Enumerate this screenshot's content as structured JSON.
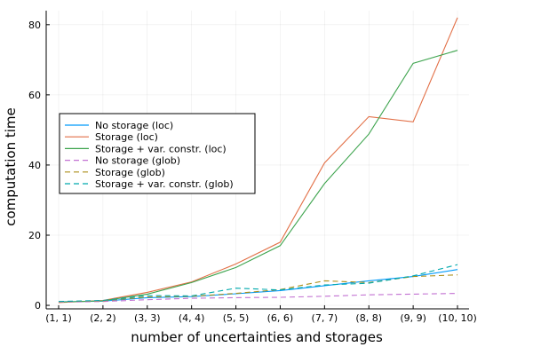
{
  "chart_data": {
    "type": "line",
    "title": "",
    "xlabel": "number of uncertainties and storages",
    "ylabel": "computation time",
    "categories": [
      "(1, 1)",
      "(2, 2)",
      "(3, 3)",
      "(4, 4)",
      "(5, 5)",
      "(6, 6)",
      "(7, 7)",
      "(8, 8)",
      "(9, 9)",
      "(10, 10)"
    ],
    "ylim": [
      -1,
      84
    ],
    "yticks": [
      0,
      20,
      40,
      60,
      80
    ],
    "grid": true,
    "legend_position": "center-left",
    "series": [
      {
        "name": "No storage (loc)",
        "color": "#009AFA",
        "dash": "solid",
        "values": [
          1.0,
          1.2,
          2.2,
          2.5,
          3.3,
          4.2,
          5.6,
          7.0,
          8.2,
          10.2
        ]
      },
      {
        "name": "Storage (loc)",
        "color": "#E26F46",
        "dash": "solid",
        "values": [
          0.8,
          1.4,
          3.7,
          6.7,
          11.8,
          18.0,
          40.6,
          53.8,
          52.3,
          82.0
        ]
      },
      {
        "name": "Storage + var. constr. (loc)",
        "color": "#3EA44E",
        "dash": "solid",
        "values": [
          0.9,
          1.3,
          3.2,
          6.5,
          10.8,
          17.0,
          34.7,
          48.8,
          69.0,
          72.7
        ]
      },
      {
        "name": "No storage (glob)",
        "color": "#C271D2",
        "dash": "dashed",
        "values": [
          0.9,
          1.1,
          1.6,
          2.0,
          2.2,
          2.3,
          2.6,
          3.0,
          3.2,
          3.4
        ]
      },
      {
        "name": "Storage (glob)",
        "color": "#AC8E18",
        "dash": "dashed",
        "values": [
          1.0,
          1.3,
          2.4,
          2.6,
          3.4,
          4.5,
          7.0,
          6.5,
          8.2,
          8.7
        ]
      },
      {
        "name": "Storage + var. constr. (glob)",
        "color": "#00A9AD",
        "dash": "dashed",
        "values": [
          1.1,
          1.4,
          2.8,
          2.7,
          4.9,
          4.4,
          5.8,
          6.3,
          8.4,
          11.6
        ]
      }
    ]
  }
}
